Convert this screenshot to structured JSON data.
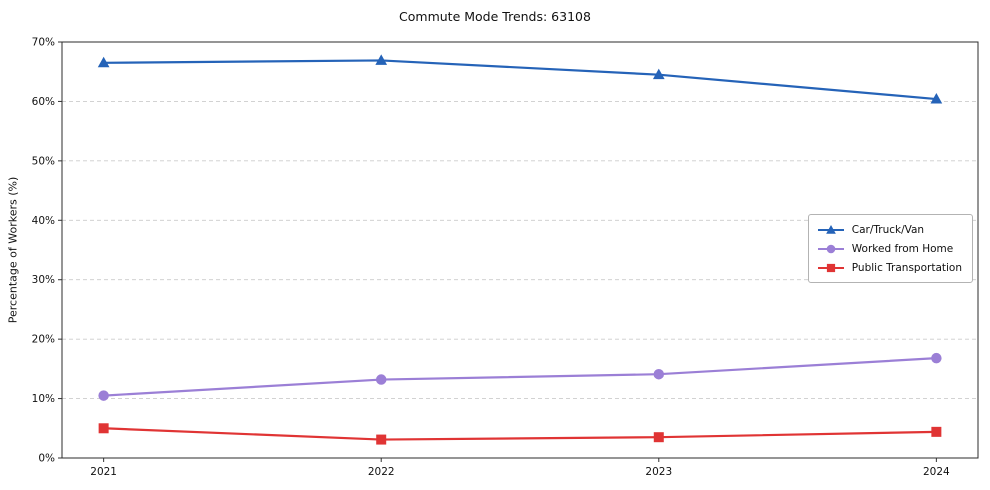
{
  "chart_data": {
    "type": "line",
    "title": "Commute Mode Trends: 63108",
    "xlabel": "",
    "ylabel": "Percentage of Workers (%)",
    "x": [
      2021,
      2022,
      2023,
      2024
    ],
    "ylim": [
      0,
      70
    ],
    "yticks": [
      0,
      10,
      20,
      30,
      40,
      50,
      60,
      70
    ],
    "ytick_suffix": "%",
    "grid": "horizontal-dashed",
    "legend_position": "center-right",
    "series": [
      {
        "name": "Car/Truck/Van",
        "values": [
          66.5,
          66.9,
          64.5,
          60.4
        ],
        "color": "#2563b8",
        "marker": "triangle"
      },
      {
        "name": "Worked from Home",
        "values": [
          10.5,
          13.2,
          14.1,
          16.8
        ],
        "color": "#9b7fd6",
        "marker": "circle"
      },
      {
        "name": "Public Transportation",
        "values": [
          5.0,
          3.1,
          3.5,
          4.4
        ],
        "color": "#e03434",
        "marker": "square"
      }
    ]
  }
}
